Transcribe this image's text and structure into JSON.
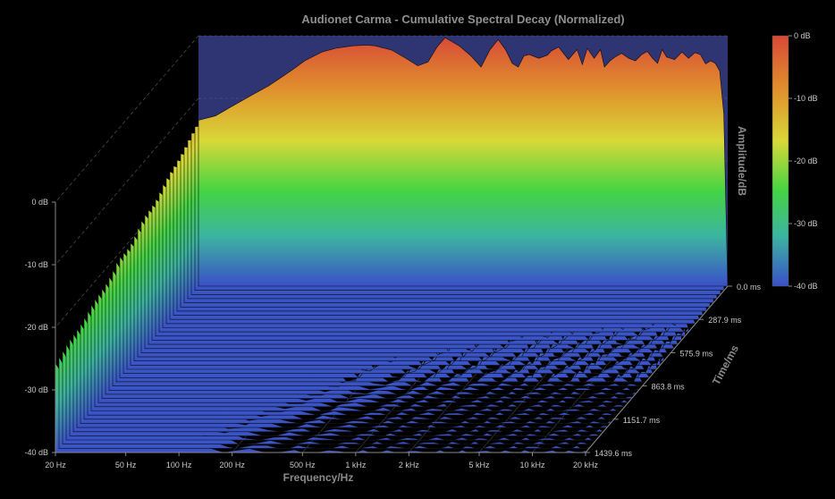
{
  "chart_data": {
    "type": "waterfall-3d",
    "title": "Audionet Carma - Cumulative Spectral Decay (Normalized)",
    "xlabel": "Frequency/Hz",
    "ylabel": "Amplitude/dB",
    "zlabel": "Time/ms",
    "x_scale": "log",
    "xlim": [
      20,
      20000
    ],
    "ylim": [
      -40,
      0
    ],
    "zlim": [
      0,
      1439.6
    ],
    "x_ticks": [
      {
        "value": 20,
        "label": "20 Hz"
      },
      {
        "value": 50,
        "label": "50 Hz"
      },
      {
        "value": 100,
        "label": "100 Hz"
      },
      {
        "value": 200,
        "label": "200 Hz"
      },
      {
        "value": 500,
        "label": "500 Hz"
      },
      {
        "value": 1000,
        "label": "1 kHz"
      },
      {
        "value": 2000,
        "label": "2 kHz"
      },
      {
        "value": 5000,
        "label": "5 kHz"
      },
      {
        "value": 10000,
        "label": "10 kHz"
      },
      {
        "value": 20000,
        "label": "20 kHz"
      }
    ],
    "y_ticks": [
      {
        "value": 0,
        "label": "0 dB"
      },
      {
        "value": -10,
        "label": "-10 dB"
      },
      {
        "value": -20,
        "label": "-20 dB"
      },
      {
        "value": -30,
        "label": "-30 dB"
      },
      {
        "value": -40,
        "label": "-40 dB"
      }
    ],
    "z_ticks": [
      {
        "value": 0,
        "label": "0.0 ms"
      },
      {
        "value": 287.9,
        "label": "287.9 ms"
      },
      {
        "value": 575.9,
        "label": "575.9 ms"
      },
      {
        "value": 863.8,
        "label": "863.8 ms"
      },
      {
        "value": 1151.7,
        "label": "1151.7 ms"
      },
      {
        "value": 1439.6,
        "label": "1439.6 ms"
      }
    ],
    "colorbar": {
      "stops": [
        "#3a50c8",
        "#3cb4a0",
        "#44d444",
        "#d8d838",
        "#e0922c",
        "#d84838"
      ],
      "labels": [
        "0 dB",
        "-10 dB",
        "-20 dB",
        "-30 dB",
        "-40 dB"
      ]
    },
    "background_color": "#2e3572",
    "first_slice": {
      "time_ms": 0,
      "frequency_hz": [
        20,
        25,
        30,
        40,
        50,
        60,
        70,
        80,
        100,
        120,
        150,
        180,
        200,
        250,
        300,
        350,
        400,
        450,
        500,
        600,
        700,
        800,
        900,
        1000,
        1100,
        1200,
        1300,
        1400,
        1500,
        1700,
        1900,
        2000,
        2200,
        2500,
        2800,
        3000,
        3200,
        3500,
        3800,
        4000,
        4300,
        4600,
        5000,
        5500,
        6000,
        6500,
        7000,
        7500,
        8000,
        8500,
        9000,
        10000,
        11000,
        12000,
        13000,
        14000,
        15000,
        16000,
        17000,
        18000,
        19000,
        20000
      ],
      "amplitude_db": [
        -13.5,
        -12.8,
        -11.5,
        -9.5,
        -8.0,
        -6.5,
        -5.2,
        -4.0,
        -2.6,
        -2.0,
        -1.6,
        -1.5,
        -1.6,
        -2.3,
        -3.6,
        -4.8,
        -4.2,
        -1.8,
        -0.3,
        -1.6,
        -3.2,
        -5.0,
        -2.2,
        -0.6,
        -2.2,
        -4.4,
        -5.0,
        -3.2,
        -3.0,
        -3.6,
        -3.1,
        -2.4,
        -1.8,
        -3.8,
        -2.2,
        -4.6,
        -2.0,
        -3.6,
        -2.2,
        -5.0,
        -4.0,
        -3.4,
        -2.8,
        -3.6,
        -4.0,
        -3.0,
        -2.5,
        -3.6,
        -4.4,
        -2.2,
        -3.4,
        -3.8,
        -2.6,
        -3.6,
        -2.7,
        -3.0,
        -4.5,
        -4.0,
        -4.4,
        -5.6,
        -12.5,
        -40.0
      ]
    }
  }
}
